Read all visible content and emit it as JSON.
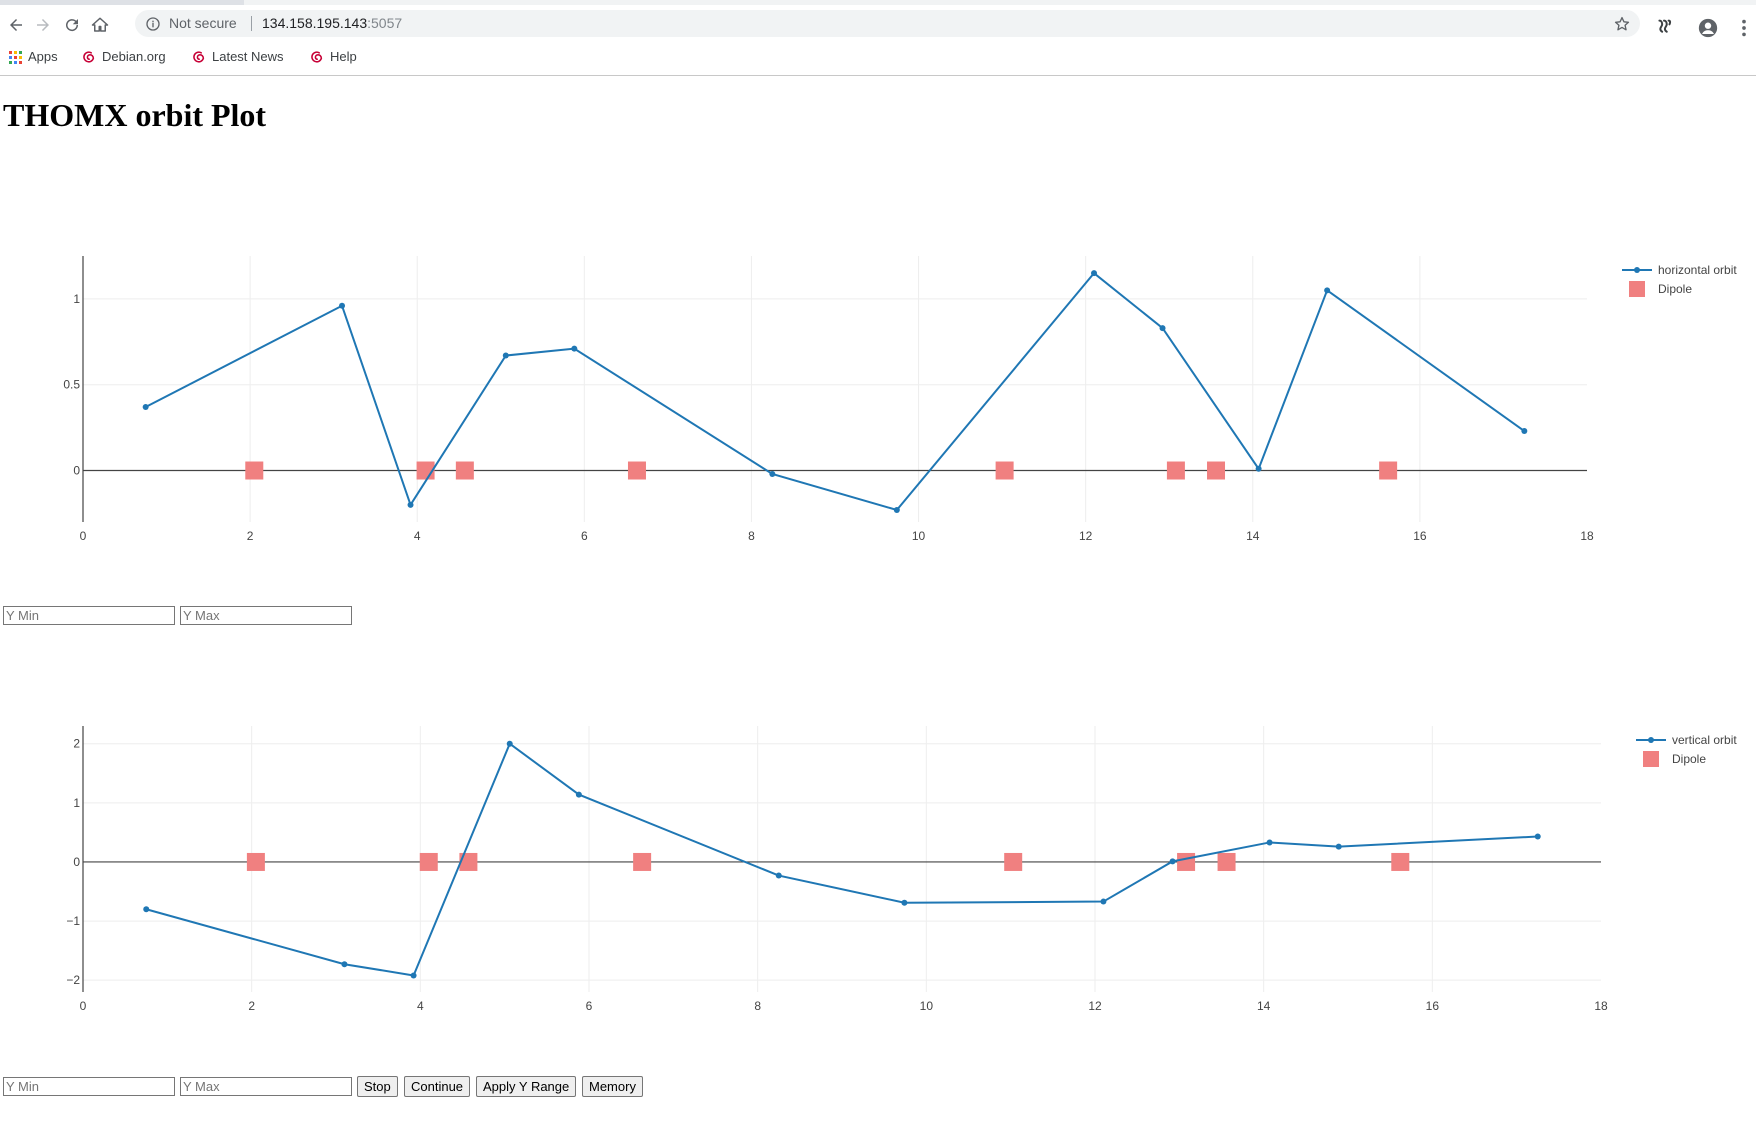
{
  "browser": {
    "security_label": "Not secure",
    "url_host": "134.158.195.143",
    "url_port": ":5057",
    "bookmarks": [
      {
        "label": "Apps",
        "icon": "apps-grid-icon"
      },
      {
        "label": "Debian.org",
        "icon": "debian-swirl-icon"
      },
      {
        "label": "Latest News",
        "icon": "debian-swirl-icon"
      },
      {
        "label": "Help",
        "icon": "debian-swirl-icon"
      }
    ],
    "icons": [
      "back-arrow-icon",
      "forward-arrow-icon",
      "reload-icon",
      "home-icon",
      "info-icon",
      "star-icon",
      "extension-icon",
      "profile-icon",
      "kebab-menu-icon"
    ]
  },
  "page": {
    "title": "THOMX orbit Plot"
  },
  "colors": {
    "line": "#1f77b4",
    "dipole": "#f08080",
    "grid": "#eeeeee",
    "zeroline": "#444444"
  },
  "controls_top": {
    "ymin_placeholder": "Y Min",
    "ymax_placeholder": "Y Max"
  },
  "controls_bottom": {
    "ymin_placeholder": "Y Min",
    "ymax_placeholder": "Y Max",
    "stop_label": "Stop",
    "continue_label": "Continue",
    "apply_label": "Apply Y Range",
    "memory_label": "Memory"
  },
  "chart_data": [
    {
      "type": "line",
      "xlim": [
        0,
        18
      ],
      "ylim": [
        -0.3,
        1.25
      ],
      "xticks": [
        0,
        2,
        4,
        6,
        8,
        10,
        12,
        14,
        16,
        18
      ],
      "yticks": [
        0,
        0.5,
        1
      ],
      "legend_position": "top-right",
      "series": [
        {
          "name": "horizontal orbit",
          "mode": "lines+markers",
          "x": [
            0.75,
            3.1,
            3.92,
            5.06,
            5.88,
            8.25,
            9.74,
            12.1,
            12.92,
            14.07,
            14.89,
            17.25
          ],
          "y": [
            0.37,
            0.96,
            -0.2,
            0.67,
            0.71,
            -0.02,
            -0.23,
            1.15,
            0.83,
            0.01,
            1.05,
            0.23
          ]
        },
        {
          "name": "Dipole",
          "mode": "markers",
          "x": [
            2.05,
            4.1,
            4.57,
            6.63,
            11.03,
            13.08,
            13.56,
            15.62
          ],
          "y": [
            0,
            0,
            0,
            0,
            0,
            0,
            0,
            0
          ]
        }
      ]
    },
    {
      "type": "line",
      "xlim": [
        0,
        18
      ],
      "ylim": [
        -2.2,
        2.3
      ],
      "xticks": [
        0,
        2,
        4,
        6,
        8,
        10,
        12,
        14,
        16,
        18
      ],
      "yticks": [
        -2,
        -1,
        0,
        1,
        2
      ],
      "legend_position": "top-right",
      "series": [
        {
          "name": "vertical orbit",
          "mode": "lines+markers",
          "x": [
            0.75,
            3.1,
            3.92,
            5.06,
            5.88,
            8.25,
            9.74,
            12.1,
            12.92,
            14.07,
            14.89,
            17.25
          ],
          "y": [
            -0.8,
            -1.73,
            -1.92,
            2.0,
            1.14,
            -0.23,
            -0.69,
            -0.67,
            0.01,
            0.33,
            0.26,
            0.43
          ]
        },
        {
          "name": "Dipole",
          "mode": "markers",
          "x": [
            2.05,
            4.1,
            4.57,
            6.63,
            11.03,
            13.08,
            13.56,
            15.62
          ],
          "y": [
            0,
            0,
            0,
            0,
            0,
            0,
            0,
            0
          ]
        }
      ]
    }
  ]
}
